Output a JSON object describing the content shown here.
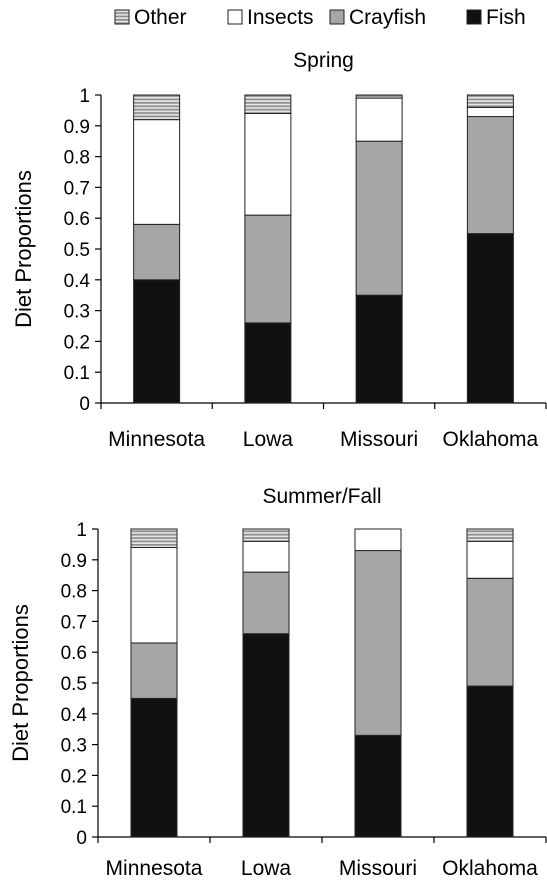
{
  "legend": {
    "items": [
      {
        "name": "Other",
        "pattern": "striped"
      },
      {
        "name": "Insects",
        "color": "#ffffff"
      },
      {
        "name": "Crayfish",
        "color": "#a6a6a6"
      },
      {
        "name": "Fish",
        "color": "#111111"
      }
    ]
  },
  "colors": {
    "fish": "#111111",
    "crayfish": "#a6a6a6",
    "insects": "#ffffff",
    "other_stripe_dark": "#8c8c8c",
    "other_stripe_light": "#e6e6e6",
    "outline": "#222222"
  },
  "chart_data": [
    {
      "type": "bar",
      "stacked": true,
      "title": "Spring",
      "ylabel": "Diet Proportions",
      "xlabel": "",
      "ylim": [
        0,
        1
      ],
      "yticks": [
        "0",
        "0.1",
        "0.2",
        "0.3",
        "0.4",
        "0.5",
        "0.6",
        "0.7",
        "0.8",
        "0.9",
        "1"
      ],
      "categories": [
        "Minnesota",
        "Lowa",
        "Missouri",
        "Oklahoma"
      ],
      "series": [
        {
          "name": "Fish",
          "values": [
            0.4,
            0.26,
            0.35,
            0.55
          ]
        },
        {
          "name": "Crayfish",
          "values": [
            0.18,
            0.35,
            0.5,
            0.38
          ]
        },
        {
          "name": "Insects",
          "values": [
            0.34,
            0.33,
            0.14,
            0.03
          ]
        },
        {
          "name": "Other",
          "values": [
            0.08,
            0.06,
            0.01,
            0.04
          ]
        }
      ],
      "grid": false,
      "legend_position": "top"
    },
    {
      "type": "bar",
      "stacked": true,
      "title": "Summer/Fall",
      "ylabel": "Diet Proportions",
      "xlabel": "",
      "ylim": [
        0,
        1
      ],
      "yticks": [
        "0",
        "0.1",
        "0.2",
        "0.3",
        "0.4",
        "0.5",
        "0.6",
        "0.7",
        "0.8",
        "0.9",
        "1"
      ],
      "categories": [
        "Minnesota",
        "Lowa",
        "Missouri",
        "Oklahoma"
      ],
      "series": [
        {
          "name": "Fish",
          "values": [
            0.45,
            0.66,
            0.33,
            0.49
          ]
        },
        {
          "name": "Crayfish",
          "values": [
            0.18,
            0.2,
            0.6,
            0.35
          ]
        },
        {
          "name": "Insects",
          "values": [
            0.31,
            0.1,
            0.07,
            0.12
          ]
        },
        {
          "name": "Other",
          "values": [
            0.06,
            0.04,
            0.0,
            0.04
          ]
        }
      ],
      "grid": false,
      "legend_position": "top"
    }
  ]
}
